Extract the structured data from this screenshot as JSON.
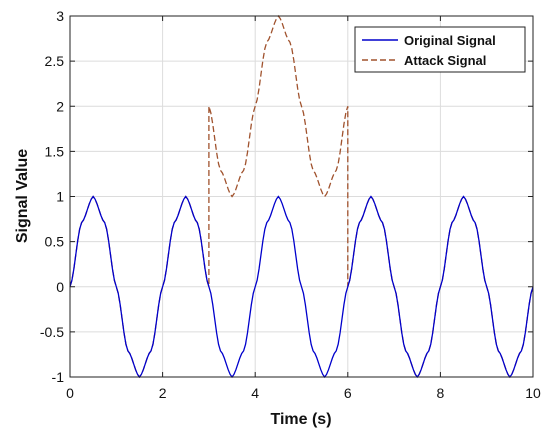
{
  "chart_data": {
    "type": "line",
    "title": "",
    "xlabel": "Time (s)",
    "ylabel": "Signal Value",
    "xlim": [
      0,
      10
    ],
    "ylim": [
      -1,
      3
    ],
    "x_ticks": [
      0,
      2,
      4,
      6,
      8,
      10
    ],
    "y_ticks": [
      -1,
      -0.5,
      0,
      0.5,
      1,
      1.5,
      2,
      2.5,
      3
    ],
    "x_tick_labels": [
      "0",
      "2",
      "4",
      "6",
      "8",
      "10"
    ],
    "y_tick_labels": [
      "-1",
      "-0.5",
      "0",
      "0.5",
      "1",
      "1.5",
      "2",
      "2.5",
      "3"
    ],
    "grid": true,
    "legend_position": "top-right",
    "series": [
      {
        "name": "Original Signal",
        "color": "#0000cc",
        "style": "solid",
        "x": [
          0,
          0.25,
          0.5,
          0.75,
          1,
          1.25,
          1.5,
          1.75,
          2,
          2.25,
          2.5,
          2.75,
          3,
          3.25,
          3.5,
          3.75,
          4,
          4.25,
          4.5,
          4.75,
          5,
          5.25,
          5.5,
          5.75,
          6,
          6.25,
          6.5,
          6.75,
          7,
          7.25,
          7.5,
          7.75,
          8,
          8.25,
          8.5,
          8.75,
          9,
          9.25,
          9.5,
          9.75,
          10
        ],
        "y": [
          0,
          0.71,
          1,
          0.71,
          0,
          -0.71,
          -1,
          -0.71,
          0,
          0.71,
          1,
          0.71,
          0,
          -0.71,
          -1,
          -0.71,
          0,
          0.71,
          1,
          0.71,
          0,
          -0.71,
          -1,
          -0.71,
          0,
          0.71,
          1,
          0.71,
          0,
          -0.71,
          -1,
          -0.71,
          0,
          0.71,
          1,
          0.71,
          0,
          -0.71,
          -1,
          -0.71,
          0
        ]
      },
      {
        "name": "Attack Signal",
        "color": "#a0522d",
        "style": "dashed",
        "x": [
          0,
          0.25,
          0.5,
          0.75,
          1,
          1.25,
          1.5,
          1.75,
          2,
          2.25,
          2.5,
          2.75,
          3,
          3,
          3.25,
          3.5,
          3.75,
          4,
          4.25,
          4.5,
          4.75,
          5,
          5.25,
          5.5,
          5.75,
          6,
          6,
          6.25,
          6.5,
          6.75,
          7,
          7.25,
          7.5,
          7.75,
          8,
          8.25,
          8.5,
          8.75,
          9,
          9.25,
          9.5,
          9.75,
          10
        ],
        "y": [
          0,
          0.71,
          1,
          0.71,
          0,
          -0.71,
          -1,
          -0.71,
          0,
          0.71,
          1,
          0.71,
          0,
          2,
          1.29,
          1,
          1.29,
          2,
          2.71,
          3,
          2.71,
          2,
          1.29,
          1,
          1.29,
          2,
          0,
          0.71,
          1,
          0.71,
          0,
          -0.71,
          -1,
          -0.71,
          0,
          0.71,
          1,
          0.71,
          0,
          -0.71,
          -1,
          -0.71,
          0
        ]
      }
    ]
  }
}
